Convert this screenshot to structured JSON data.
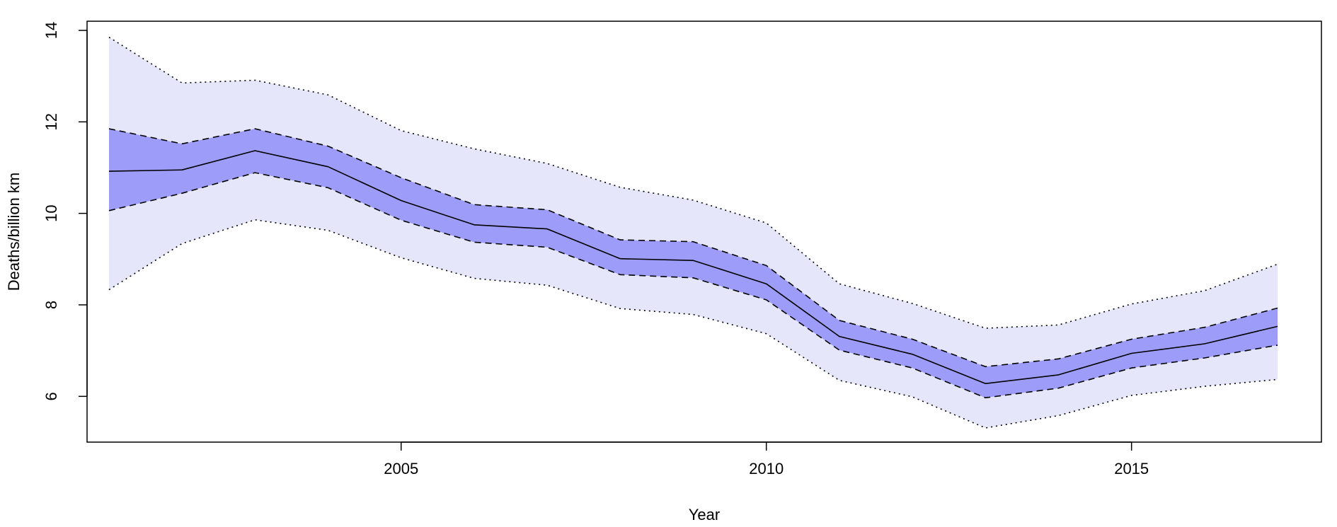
{
  "chart_data": {
    "type": "line",
    "xlabel": "Year",
    "ylabel": "Deaths/billion km",
    "xlim": [
      2000.7,
      2017.6
    ],
    "ylim": [
      5.0,
      14.2
    ],
    "x_ticks": [
      2005,
      2010,
      2015
    ],
    "y_ticks": [
      6,
      8,
      10,
      12,
      14
    ],
    "x": [
      2001,
      2002,
      2003,
      2004,
      2005,
      2006,
      2007,
      2008,
      2009,
      2010,
      2011,
      2012,
      2013,
      2014,
      2015,
      2016,
      2017
    ],
    "series": [
      {
        "values": [
          10.92,
          10.95,
          11.37,
          11.02,
          10.28,
          9.75,
          9.66,
          9.01,
          8.97,
          8.46,
          7.31,
          6.92,
          6.28,
          6.47,
          6.94,
          7.15,
          7.53
        ]
      },
      {
        "values": [
          11.85,
          11.52,
          11.85,
          11.47,
          10.78,
          10.19,
          10.08,
          9.42,
          9.38,
          8.86,
          7.66,
          7.25,
          6.65,
          6.82,
          7.25,
          7.51,
          7.93
        ]
      },
      {
        "values": [
          10.06,
          10.44,
          10.89,
          10.56,
          9.85,
          9.37,
          9.26,
          8.66,
          8.59,
          8.11,
          7.01,
          6.62,
          5.97,
          6.18,
          6.62,
          6.84,
          7.12
        ]
      },
      {
        "values": [
          13.85,
          12.85,
          12.91,
          12.59,
          11.81,
          11.41,
          11.09,
          10.57,
          10.29,
          9.79,
          8.46,
          8.03,
          7.49,
          7.56,
          8.02,
          8.31,
          8.89
        ]
      },
      {
        "values": [
          8.33,
          9.34,
          9.86,
          9.63,
          9.03,
          8.58,
          8.43,
          7.92,
          7.79,
          7.37,
          6.35,
          5.99,
          5.31,
          5.58,
          6.02,
          6.22,
          6.37
        ]
      }
    ],
    "band_colors": {
      "outer": "#e6e6fb",
      "inner": "#9d9df9"
    },
    "line_color": "#000000",
    "grid": false,
    "legend": false
  }
}
